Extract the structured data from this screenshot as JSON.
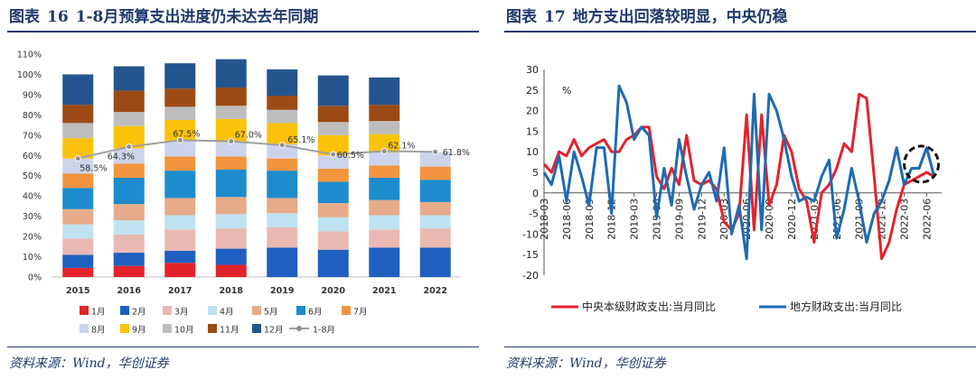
{
  "left": {
    "title_prefix": "图表",
    "figure_no": "16",
    "title": "1-8月预算支出进度仍未达去年同期",
    "source": "资料来源：Wind，华创证券"
  },
  "right": {
    "title_prefix": "图表",
    "figure_no": "17",
    "title": "地方支出回落较明显，中央仍稳",
    "source": "资料来源：Wind，华创证券"
  },
  "chart_data": [
    {
      "type": "bar",
      "stacked": true,
      "categories": [
        "2015",
        "2016",
        "2017",
        "2018",
        "2019",
        "2020",
        "2021",
        "2022"
      ],
      "ylim": [
        0,
        110
      ],
      "yticks": [
        "0%",
        "10%",
        "20%",
        "30%",
        "40%",
        "50%",
        "60%",
        "70%",
        "80%",
        "90%",
        "100%",
        "110%"
      ],
      "series": [
        {
          "name": "1月",
          "color": "#e3232b",
          "values": [
            4.5,
            5.5,
            7.0,
            6.0,
            0,
            0,
            0,
            0
          ]
        },
        {
          "name": "2月",
          "color": "#1f5fbf",
          "values": [
            6.5,
            6.5,
            6.0,
            8.0,
            14.5,
            13.5,
            14.5,
            14.5
          ]
        },
        {
          "name": "3月",
          "color": "#eab9b3",
          "values": [
            8.0,
            9.0,
            10.5,
            10.0,
            10.0,
            9.0,
            9.0,
            9.5
          ]
        },
        {
          "name": "4月",
          "color": "#bfe2f0",
          "values": [
            7.0,
            7.0,
            7.0,
            7.0,
            7.0,
            7.0,
            7.0,
            6.5
          ]
        },
        {
          "name": "5月",
          "color": "#e6ab8a",
          "values": [
            7.5,
            8.0,
            8.5,
            8.5,
            7.5,
            7.0,
            7.5,
            6.5
          ]
        },
        {
          "name": "6月",
          "color": "#1e8ccc",
          "values": [
            10.5,
            13.0,
            13.5,
            13.5,
            13.5,
            10.5,
            11.0,
            11.0
          ]
        },
        {
          "name": "7月",
          "color": "#f3943e",
          "values": [
            7.0,
            7.0,
            7.0,
            6.5,
            6.0,
            6.5,
            6.0,
            6.5
          ]
        },
        {
          "name": "8月",
          "color": "#cdd3ea",
          "values": [
            7.5,
            7.5,
            7.5,
            7.0,
            7.0,
            6.5,
            6.5,
            7.0
          ]
        },
        {
          "name": "9月",
          "color": "#fbc20a",
          "values": [
            10.0,
            11.0,
            10.5,
            11.5,
            10.5,
            10.0,
            9.0,
            0
          ]
        },
        {
          "name": "10月",
          "color": "#bdbdbd",
          "values": [
            7.5,
            7.0,
            6.5,
            6.5,
            6.5,
            6.5,
            6.5,
            0
          ]
        },
        {
          "name": "11月",
          "color": "#9c4a14",
          "values": [
            9.0,
            10.5,
            9.0,
            9.0,
            7.0,
            8.0,
            8.0,
            0
          ]
        },
        {
          "name": "12月",
          "color": "#25558f",
          "values": [
            15.0,
            12.0,
            12.5,
            14.0,
            13.0,
            15.0,
            13.5,
            0
          ]
        }
      ],
      "line": {
        "name": "1-8月",
        "color": "#a0a0a0",
        "values": [
          58.5,
          64.3,
          67.5,
          67.0,
          65.1,
          60.5,
          62.1,
          61.8
        ],
        "labels": [
          "58.5%",
          "64.3%",
          "67.5%",
          "67.0%",
          "65.1%",
          "60.5%",
          "62.1%",
          "61.8%"
        ]
      }
    },
    {
      "type": "line",
      "ylim": [
        -20,
        30
      ],
      "yticks": [
        "-20",
        "-15",
        "-10",
        "-5",
        "0",
        "5",
        "10",
        "15",
        "20",
        "25",
        "30"
      ],
      "yunit": "%",
      "xlim": [
        0,
        53
      ],
      "x_tick_positions": [
        0,
        3,
        6,
        9,
        12,
        15,
        18,
        21,
        24,
        27,
        30,
        33,
        36,
        39,
        42,
        45,
        48,
        51
      ],
      "x_tick_labels": [
        "2018-03",
        "2018-06",
        "2018-09",
        "2018-12",
        "2019-03",
        "2019-06",
        "2019-09",
        "2019-12",
        "2020-03",
        "2020-06",
        "2020-09",
        "2020-12",
        "2021-03",
        "2021-06",
        "2021-09",
        "2021-12",
        "2022-03",
        "2022-06"
      ],
      "series": [
        {
          "name": "中央本级财政支出:当月同比",
          "color": "#e3232b",
          "values": [
            7,
            5,
            10,
            9,
            13,
            9,
            11,
            12,
            13,
            10,
            10,
            13,
            14,
            16,
            16,
            4,
            1,
            6,
            2,
            14,
            3,
            2,
            3,
            1,
            -7,
            -9,
            -5,
            19,
            -9,
            19,
            -3,
            2,
            14,
            10,
            1,
            -2,
            -12,
            0,
            2,
            6,
            12,
            10,
            24,
            23,
            4,
            -16,
            -12,
            -4,
            2,
            3,
            4,
            5,
            4
          ]
        },
        {
          "name": "地方财政支出:当月同比",
          "color": "#1f6ab3",
          "values": [
            5,
            2,
            9,
            -2,
            10,
            4,
            -3,
            11,
            11,
            -5,
            26,
            22,
            13,
            16,
            14,
            -6,
            6,
            -3,
            13,
            4,
            -4,
            2,
            5,
            -2,
            11,
            -10,
            -3,
            -16,
            24,
            -9,
            24,
            20,
            13,
            4,
            -2,
            -1,
            -2,
            4,
            8,
            -11,
            -4,
            6,
            -2,
            -12,
            -5,
            -2,
            3,
            11,
            2,
            6,
            6,
            11,
            4
          ]
        }
      ]
    }
  ]
}
